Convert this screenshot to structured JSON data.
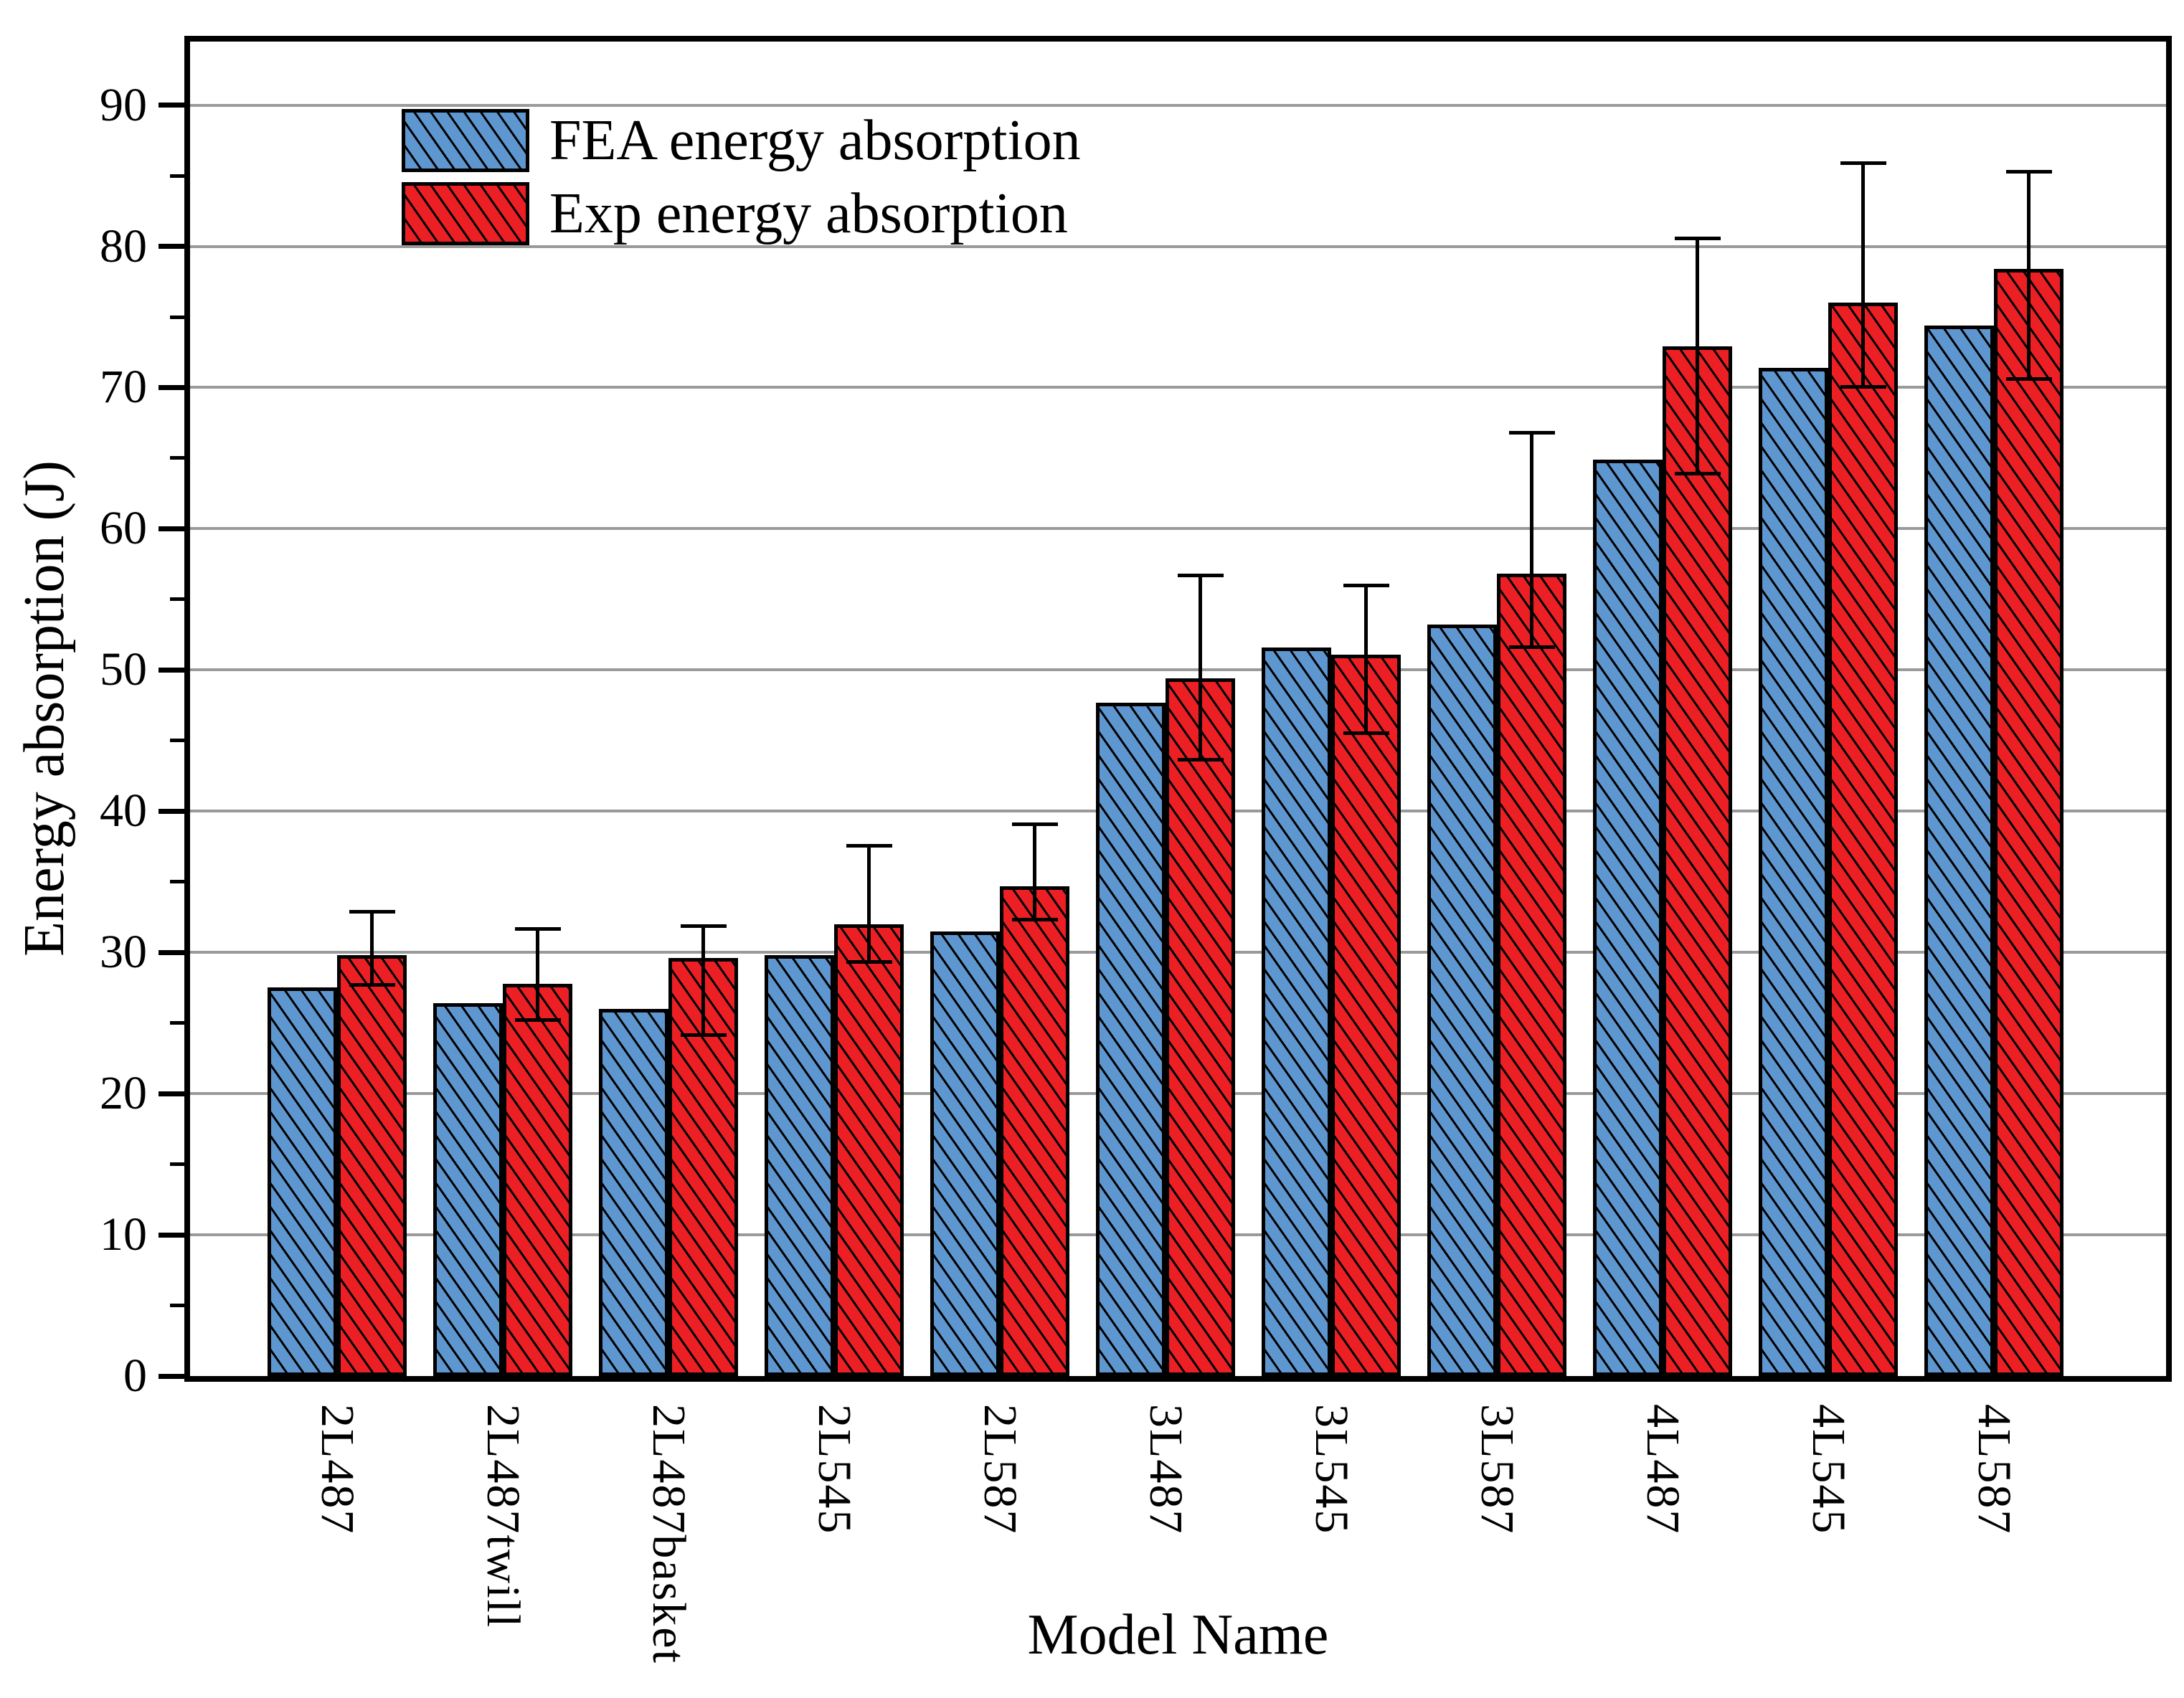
{
  "chart_data": {
    "type": "bar",
    "title": "",
    "xlabel": "Model Name",
    "ylabel": "Energy absorption (J)",
    "ylim": [
      0,
      94.5
    ],
    "yticks": [
      0,
      10,
      20,
      30,
      40,
      50,
      60,
      70,
      80,
      90
    ],
    "minor_tick_step": 5,
    "grid": "horizontal-major-gray",
    "legend_position": "upper-left-inside",
    "categories": [
      "2L487",
      "2L487twill",
      "2L487basket",
      "2L545",
      "2L587",
      "3L487",
      "3L545",
      "3L587",
      "4L487",
      "4L545",
      "4L587"
    ],
    "series": [
      {
        "name": "FEA energy absorption",
        "color": "#5e97d0",
        "hatch": "diagonal-back",
        "values": [
          27.5,
          26.4,
          26.0,
          29.8,
          31.5,
          47.7,
          51.6,
          53.2,
          64.9,
          71.4,
          74.4
        ]
      },
      {
        "name": "Exp energy absorption",
        "color": "#ec2024",
        "hatch": "diagonal-back",
        "values": [
          29.8,
          27.8,
          29.6,
          32.0,
          34.7,
          49.4,
          51.1,
          56.8,
          72.9,
          76.0,
          78.4
        ],
        "error_top": [
          32.9,
          31.7,
          31.9,
          37.6,
          39.1,
          56.7,
          56.0,
          66.8,
          80.6,
          85.9,
          85.3
        ],
        "error_bottom": [
          27.7,
          25.2,
          24.1,
          29.3,
          32.3,
          43.6,
          45.5,
          51.6,
          63.9,
          70.0,
          70.6
        ]
      }
    ]
  },
  "colors": {
    "fea_blue": "#5e97d0",
    "exp_red": "#ec2024",
    "gridline_gray": "#9a9a9a",
    "axis_black": "#000000",
    "background": "#ffffff"
  }
}
